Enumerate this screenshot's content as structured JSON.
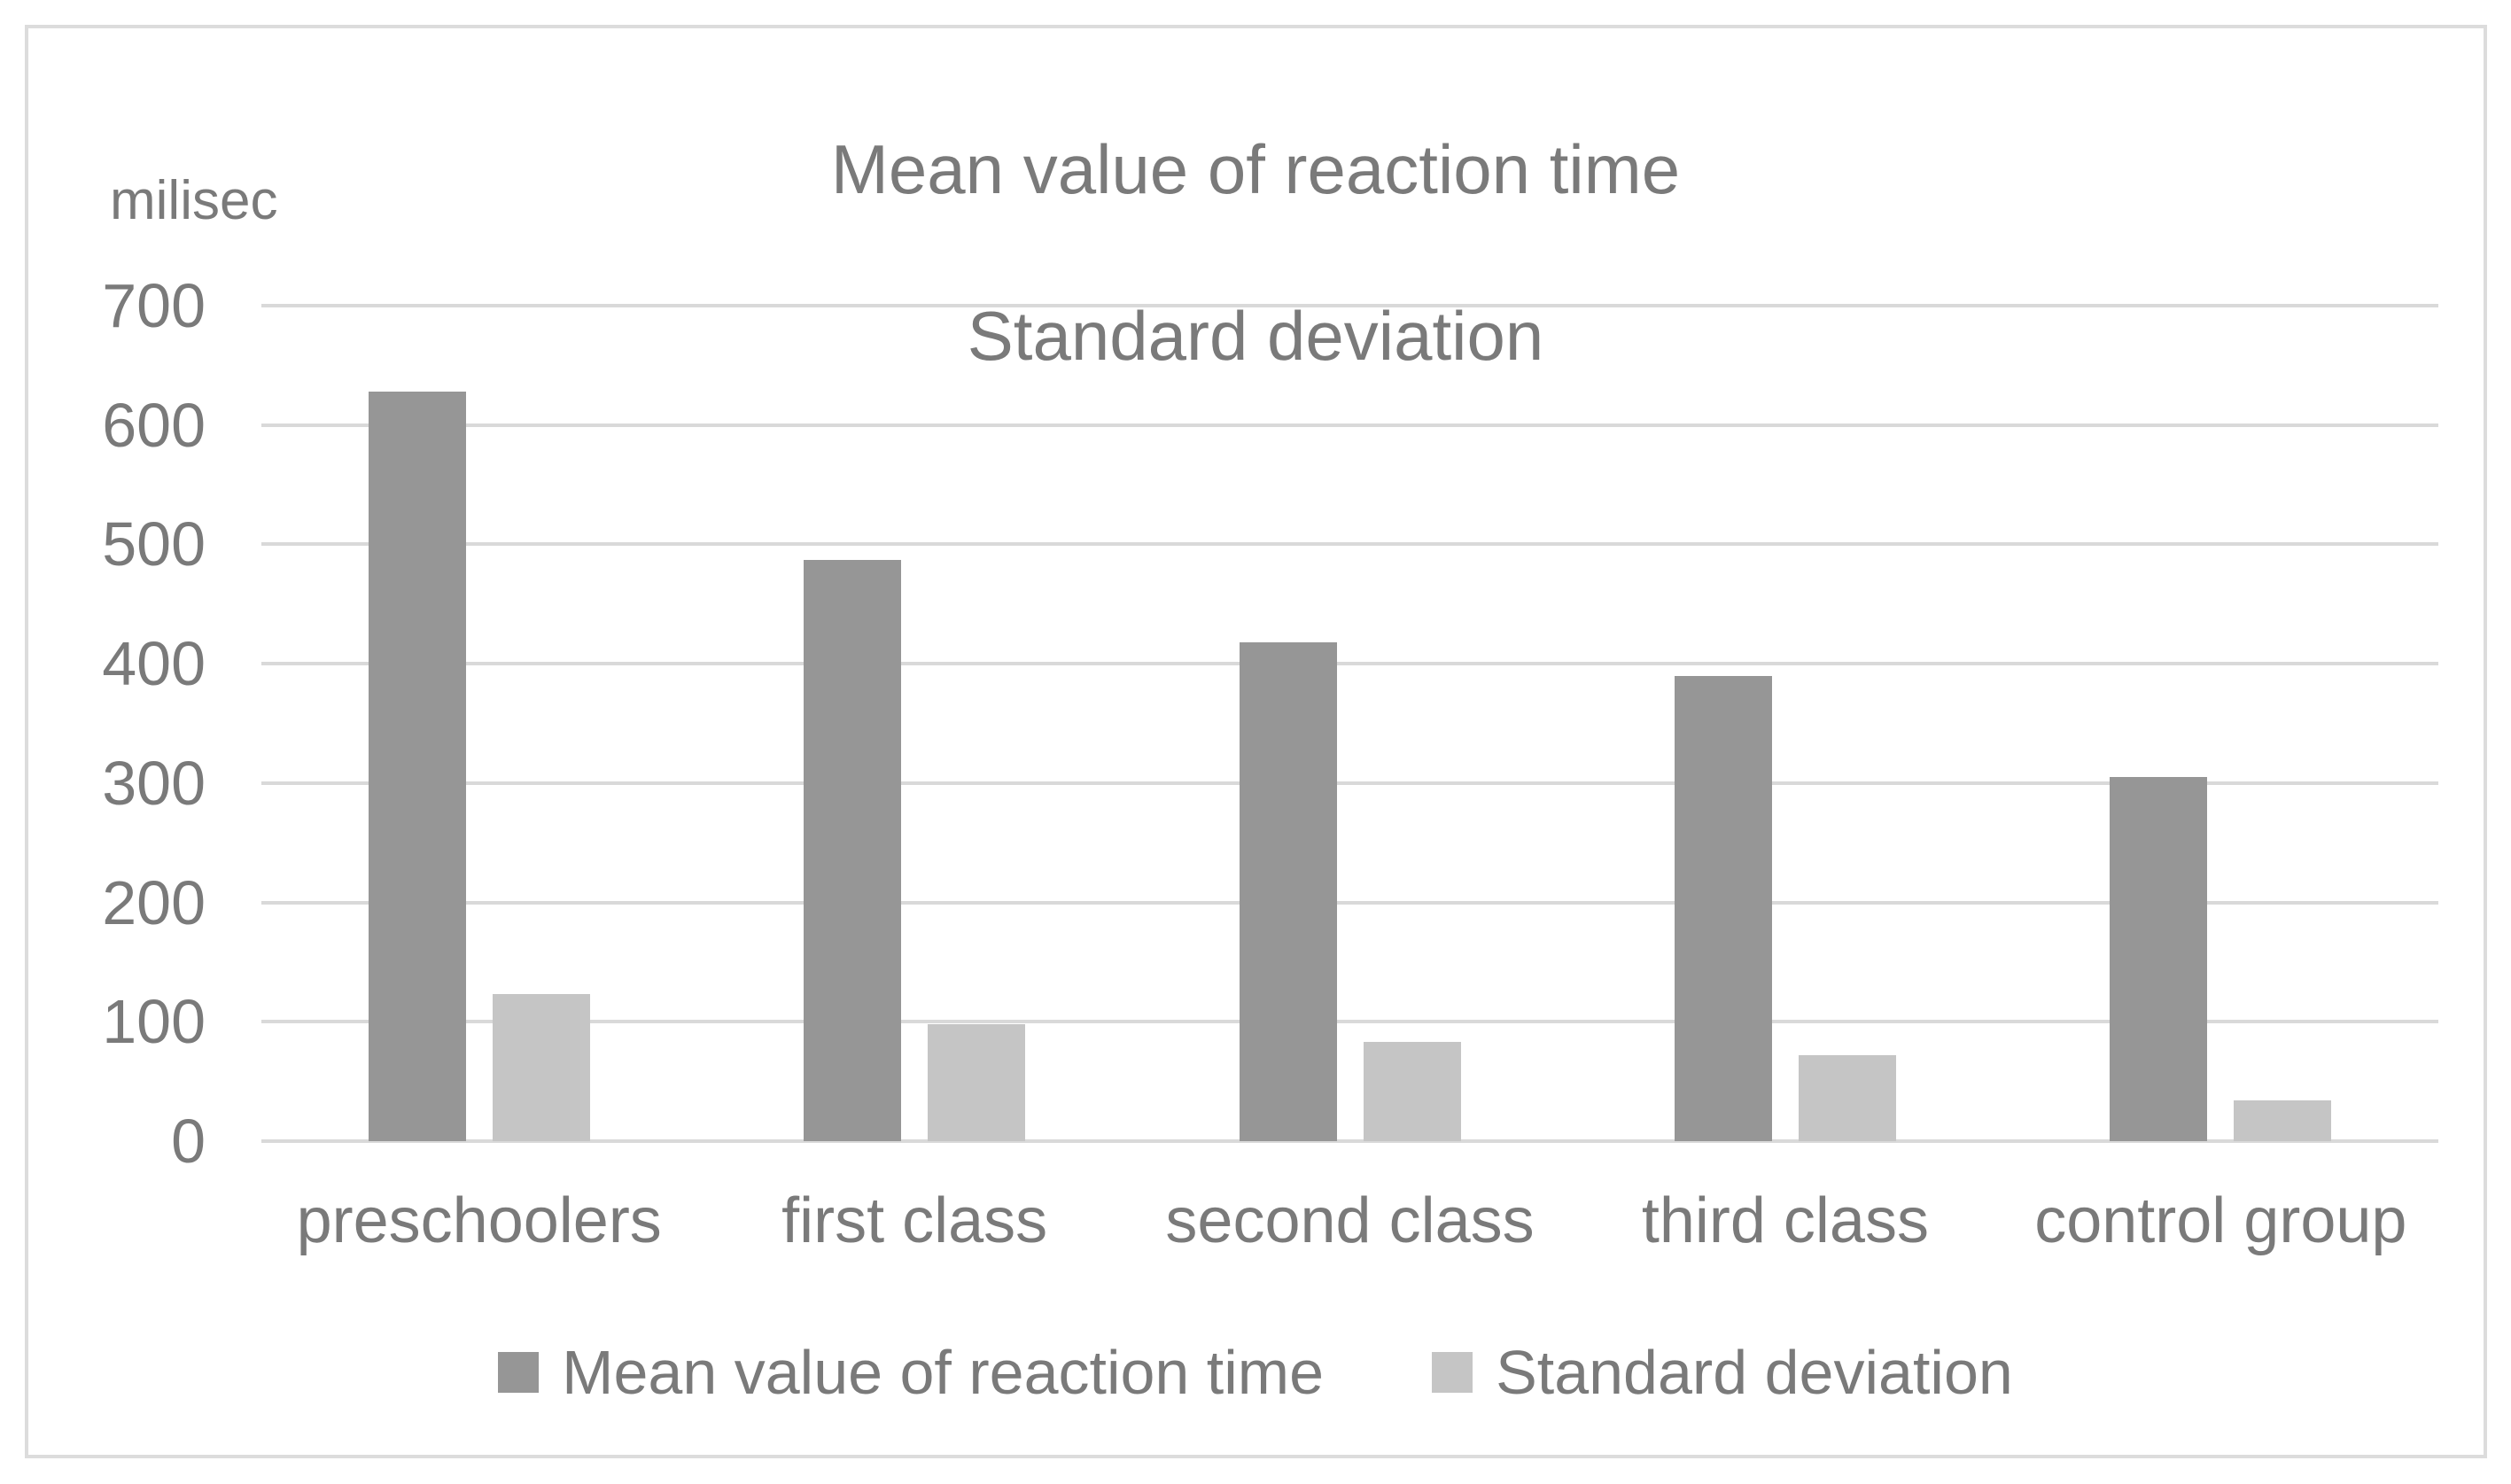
{
  "figure": {
    "background": "#ffffff",
    "border_color": "#dcdcdc"
  },
  "chart_data": {
    "type": "bar",
    "title": "Mean value of reaction time",
    "subtitle": "Standard deviation",
    "ylabel": "milisec",
    "categories": [
      "preschoolers",
      "first class",
      "second class",
      "third class",
      "control group"
    ],
    "series": [
      {
        "name": "Mean value of reaction time",
        "color": "#969696",
        "values": [
          628,
          487,
          418,
          390,
          305
        ]
      },
      {
        "name": "Standard deviation",
        "color": "#c5c5c5",
        "values": [
          123,
          98,
          83,
          72,
          34
        ]
      }
    ],
    "ylim": [
      0,
      700
    ],
    "yticks": [
      0,
      100,
      200,
      300,
      400,
      500,
      600,
      700
    ],
    "grid": true,
    "gridline_color": "#d9d9d9",
    "text_color": "#7a7a7a",
    "legend_position": "bottom"
  }
}
